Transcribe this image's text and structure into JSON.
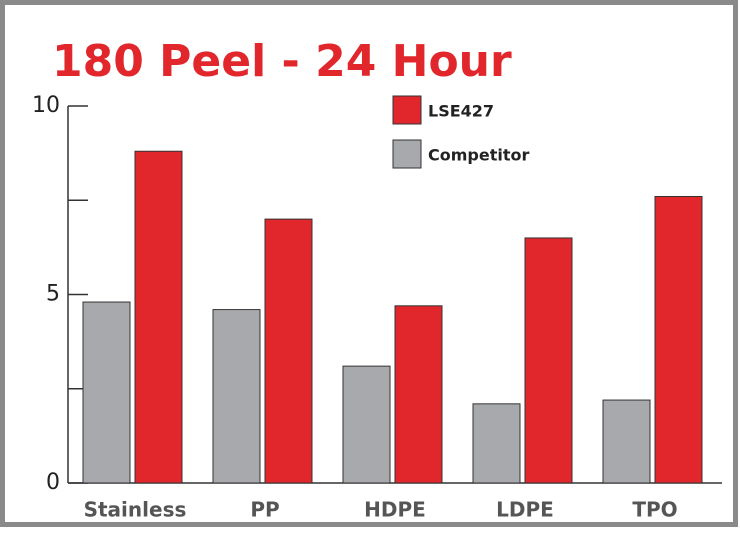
{
  "chart_data": {
    "type": "bar",
    "title": "180 Peel - 24 Hour",
    "categories": [
      "Stainless",
      "PP",
      "HDPE",
      "LDPE",
      "TPO"
    ],
    "series": [
      {
        "name": "LSE427",
        "color": "#e1262c",
        "values": [
          8.8,
          7.0,
          4.7,
          6.5,
          7.6
        ]
      },
      {
        "name": "Competitor",
        "color": "#a7a9ac",
        "values": [
          4.8,
          4.6,
          3.1,
          2.1,
          2.2
        ]
      }
    ],
    "ylim": [
      0,
      10
    ],
    "yticks": [
      0,
      5,
      10
    ],
    "yminorticks": [
      2.5,
      7.5
    ]
  }
}
